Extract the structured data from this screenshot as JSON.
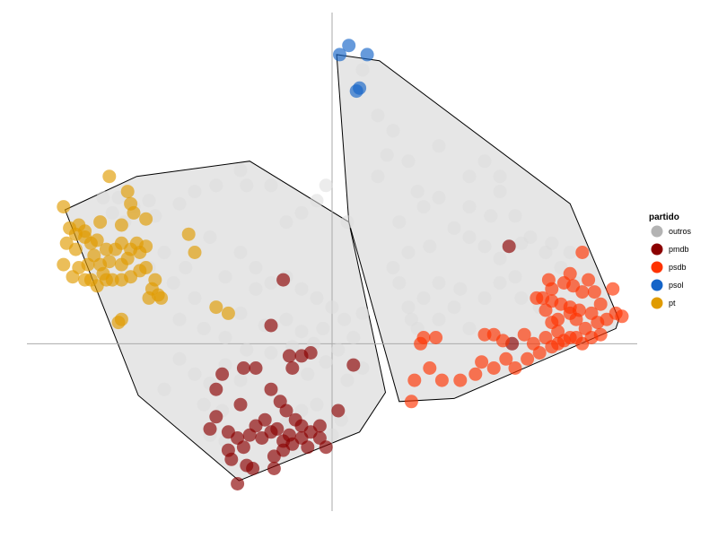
{
  "chart_data": {
    "type": "scatter",
    "title": "",
    "xlabel": "",
    "ylabel": "",
    "xlim": [
      -1.0,
      1.0
    ],
    "ylim": [
      -0.55,
      1.1
    ],
    "axes_lines": {
      "x": 0,
      "y": 0
    },
    "grid": false,
    "legend": {
      "title": "partido",
      "placement": "right",
      "entries": [
        {
          "name": "outros",
          "color": "#b3b3b3"
        },
        {
          "name": "pmdb",
          "color": "#8b0000"
        },
        {
          "name": "psdb",
          "color": "#ff3300"
        },
        {
          "name": "psol",
          "color": "#1464c8"
        },
        {
          "name": "pt",
          "color": "#e09b00"
        }
      ]
    },
    "hulls": [
      {
        "group": "pt_pmdb",
        "points": [
          [
            -0.875,
            0.44
          ],
          [
            -0.64,
            0.55
          ],
          [
            -0.27,
            0.6
          ],
          [
            0.055,
            0.4
          ],
          [
            0.175,
            -0.16
          ],
          [
            0.09,
            -0.29
          ],
          [
            -0.305,
            -0.45
          ],
          [
            -0.635,
            -0.17
          ]
        ]
      },
      {
        "group": "psol_psdb",
        "points": [
          [
            0.015,
            0.95
          ],
          [
            0.155,
            0.93
          ],
          [
            0.78,
            0.46
          ],
          [
            0.94,
            0.08
          ],
          [
            0.93,
            0.05
          ],
          [
            0.4,
            -0.18
          ],
          [
            0.22,
            -0.19
          ],
          [
            0.055,
            0.4
          ]
        ]
      }
    ],
    "series": [
      {
        "name": "outros",
        "color": "#dddddd",
        "points": [
          [
            -0.75,
            0.48
          ],
          [
            -0.72,
            0.43
          ],
          [
            -0.7,
            0.48
          ],
          [
            -0.68,
            0.4
          ],
          [
            -0.65,
            0.45
          ],
          [
            -0.6,
            0.47
          ],
          [
            -0.58,
            0.42
          ],
          [
            -0.5,
            0.46
          ],
          [
            -0.45,
            0.5
          ],
          [
            -0.38,
            0.52
          ],
          [
            -0.3,
            0.57
          ],
          [
            -0.28,
            0.52
          ],
          [
            -0.2,
            0.52
          ],
          [
            -0.15,
            0.4
          ],
          [
            -0.1,
            0.43
          ],
          [
            -0.05,
            0.47
          ],
          [
            -0.02,
            0.52
          ],
          [
            0.05,
            0.4
          ],
          [
            -0.4,
            0.35
          ],
          [
            -0.3,
            0.3
          ],
          [
            -0.25,
            0.25
          ],
          [
            -0.2,
            0.2
          ],
          [
            -0.15,
            0.22
          ],
          [
            -0.1,
            0.18
          ],
          [
            -0.05,
            0.15
          ],
          [
            0.0,
            0.12
          ],
          [
            -0.3,
            0.1
          ],
          [
            -0.22,
            0.06
          ],
          [
            -0.15,
            0.08
          ],
          [
            -0.1,
            0.04
          ],
          [
            -0.03,
            0.05
          ],
          [
            0.04,
            0.08
          ],
          [
            0.1,
            0.1
          ],
          [
            -0.45,
            0.15
          ],
          [
            -0.5,
            0.08
          ],
          [
            -0.42,
            0.05
          ],
          [
            -0.35,
            0.02
          ],
          [
            -0.28,
            -0.02
          ],
          [
            -0.2,
            -0.03
          ],
          [
            -0.13,
            -0.01
          ],
          [
            -0.06,
            0.0
          ],
          [
            0.02,
            -0.02
          ],
          [
            0.07,
            0.02
          ],
          [
            -0.5,
            -0.05
          ],
          [
            -0.45,
            -0.1
          ],
          [
            -0.4,
            -0.13
          ],
          [
            -0.35,
            -0.07
          ],
          [
            -0.3,
            -0.12
          ],
          [
            -0.08,
            -0.1
          ],
          [
            -0.02,
            -0.06
          ],
          [
            0.05,
            -0.12
          ],
          [
            0.1,
            -0.08
          ],
          [
            -0.1,
            -0.22
          ],
          [
            -0.05,
            -0.2
          ],
          [
            0.03,
            -0.25
          ],
          [
            -0.4,
            -0.3
          ],
          [
            -0.35,
            -0.32
          ],
          [
            0.1,
            0.9
          ],
          [
            0.15,
            0.75
          ],
          [
            0.2,
            0.7
          ],
          [
            0.25,
            0.6
          ],
          [
            0.35,
            0.65
          ],
          [
            0.45,
            0.55
          ],
          [
            0.5,
            0.6
          ],
          [
            0.55,
            0.5
          ],
          [
            0.6,
            0.42
          ],
          [
            0.65,
            0.35
          ],
          [
            0.7,
            0.3
          ],
          [
            0.75,
            0.25
          ],
          [
            0.8,
            0.2
          ],
          [
            0.15,
            0.55
          ],
          [
            0.22,
            0.4
          ],
          [
            0.3,
            0.45
          ],
          [
            0.4,
            0.38
          ],
          [
            0.45,
            0.35
          ],
          [
            0.5,
            0.32
          ],
          [
            0.55,
            0.28
          ],
          [
            0.6,
            0.22
          ],
          [
            0.2,
            0.25
          ],
          [
            0.25,
            0.3
          ],
          [
            0.35,
            0.2
          ],
          [
            0.42,
            0.18
          ],
          [
            0.5,
            0.15
          ],
          [
            0.55,
            0.2
          ],
          [
            0.62,
            0.15
          ],
          [
            0.68,
            0.12
          ],
          [
            0.25,
            0.12
          ],
          [
            0.3,
            0.15
          ],
          [
            0.35,
            0.08
          ],
          [
            0.45,
            0.05
          ],
          [
            0.55,
            0.02
          ],
          [
            0.28,
            0.05
          ],
          [
            0.26,
            0.08
          ],
          [
            0.4,
            0.12
          ],
          [
            0.22,
            0.2
          ],
          [
            0.32,
            0.32
          ],
          [
            0.62,
            0.33
          ],
          [
            0.52,
            0.42
          ],
          [
            0.72,
            0.33
          ],
          [
            0.78,
            0.3
          ],
          [
            0.55,
            0.55
          ],
          [
            0.45,
            0.45
          ],
          [
            0.35,
            0.48
          ],
          [
            0.18,
            0.62
          ],
          [
            0.28,
            0.5
          ],
          [
            -0.55,
            0.3
          ],
          [
            -0.6,
            0.25
          ],
          [
            -0.52,
            0.2
          ],
          [
            -0.48,
            0.25
          ],
          [
            -0.35,
            0.22
          ],
          [
            -0.25,
            0.18
          ],
          [
            -0.42,
            -0.2
          ],
          [
            -0.36,
            -0.22
          ],
          [
            -0.15,
            -0.26
          ],
          [
            -0.12,
            -0.3
          ],
          [
            0.0,
            -0.3
          ],
          [
            -0.55,
            -0.15
          ]
        ]
      },
      {
        "name": "pmdb",
        "color": "#8b0000",
        "points": [
          [
            -0.16,
            0.21
          ],
          [
            -0.2,
            0.06
          ],
          [
            -0.36,
            -0.1
          ],
          [
            -0.29,
            -0.08
          ],
          [
            -0.25,
            -0.08
          ],
          [
            -0.14,
            -0.04
          ],
          [
            -0.13,
            -0.08
          ],
          [
            -0.1,
            -0.04
          ],
          [
            -0.07,
            -0.03
          ],
          [
            0.07,
            -0.07
          ],
          [
            -0.2,
            -0.15
          ],
          [
            -0.17,
            -0.19
          ],
          [
            -0.38,
            -0.15
          ],
          [
            -0.3,
            -0.2
          ],
          [
            -0.38,
            -0.24
          ],
          [
            -0.4,
            -0.28
          ],
          [
            -0.34,
            -0.29
          ],
          [
            -0.31,
            -0.31
          ],
          [
            -0.27,
            -0.3
          ],
          [
            -0.22,
            -0.25
          ],
          [
            -0.25,
            -0.27
          ],
          [
            -0.15,
            -0.22
          ],
          [
            -0.12,
            -0.25
          ],
          [
            -0.1,
            -0.27
          ],
          [
            -0.18,
            -0.28
          ],
          [
            -0.16,
            -0.32
          ],
          [
            -0.13,
            -0.33
          ],
          [
            -0.1,
            -0.31
          ],
          [
            -0.07,
            -0.29
          ],
          [
            -0.04,
            -0.31
          ],
          [
            -0.04,
            -0.27
          ],
          [
            -0.02,
            -0.34
          ],
          [
            -0.08,
            -0.34
          ],
          [
            -0.14,
            -0.3
          ],
          [
            -0.2,
            -0.29
          ],
          [
            -0.23,
            -0.31
          ],
          [
            -0.29,
            -0.34
          ],
          [
            -0.33,
            -0.38
          ],
          [
            -0.28,
            -0.4
          ],
          [
            -0.19,
            -0.37
          ],
          [
            -0.16,
            -0.35
          ],
          [
            -0.26,
            -0.41
          ],
          [
            -0.31,
            -0.46
          ],
          [
            -0.19,
            -0.41
          ],
          [
            0.02,
            -0.22
          ],
          [
            -0.34,
            -0.35
          ],
          [
            0.58,
            0.32
          ],
          [
            0.59,
            0.0
          ]
        ]
      },
      {
        "name": "psdb",
        "color": "#ff3300",
        "points": [
          [
            0.82,
            0.3
          ],
          [
            0.92,
            0.18
          ],
          [
            0.27,
            -0.12
          ],
          [
            0.26,
            -0.19
          ],
          [
            0.29,
            0.0
          ],
          [
            0.3,
            0.02
          ],
          [
            0.34,
            0.02
          ],
          [
            0.32,
            -0.08
          ],
          [
            0.36,
            -0.12
          ],
          [
            0.42,
            -0.12
          ],
          [
            0.47,
            -0.1
          ],
          [
            0.5,
            0.03
          ],
          [
            0.53,
            0.03
          ],
          [
            0.49,
            -0.06
          ],
          [
            0.53,
            -0.08
          ],
          [
            0.57,
            -0.05
          ],
          [
            0.56,
            0.01
          ],
          [
            0.63,
            0.03
          ],
          [
            0.64,
            -0.05
          ],
          [
            0.68,
            -0.03
          ],
          [
            0.7,
            0.02
          ],
          [
            0.72,
            -0.01
          ],
          [
            0.74,
            0.0
          ],
          [
            0.76,
            0.01
          ],
          [
            0.78,
            0.02
          ],
          [
            0.8,
            0.02
          ],
          [
            0.82,
            0.0
          ],
          [
            0.85,
            0.02
          ],
          [
            0.88,
            0.03
          ],
          [
            0.83,
            0.05
          ],
          [
            0.8,
            0.08
          ],
          [
            0.78,
            0.1
          ],
          [
            0.74,
            0.08
          ],
          [
            0.72,
            0.07
          ],
          [
            0.7,
            0.11
          ],
          [
            0.69,
            0.15
          ],
          [
            0.72,
            0.14
          ],
          [
            0.75,
            0.13
          ],
          [
            0.78,
            0.12
          ],
          [
            0.81,
            0.11
          ],
          [
            0.85,
            0.1
          ],
          [
            0.87,
            0.07
          ],
          [
            0.9,
            0.08
          ],
          [
            0.93,
            0.1
          ],
          [
            0.95,
            0.09
          ],
          [
            0.88,
            0.13
          ],
          [
            0.86,
            0.17
          ],
          [
            0.82,
            0.17
          ],
          [
            0.79,
            0.19
          ],
          [
            0.76,
            0.2
          ],
          [
            0.72,
            0.18
          ],
          [
            0.67,
            0.15
          ],
          [
            0.71,
            0.21
          ],
          [
            0.78,
            0.23
          ],
          [
            0.84,
            0.21
          ],
          [
            0.6,
            -0.08
          ],
          [
            0.66,
            0.0
          ],
          [
            0.74,
            0.04
          ]
        ]
      },
      {
        "name": "psol",
        "color": "#1464c8",
        "points": [
          [
            0.025,
            0.95
          ],
          [
            0.055,
            0.98
          ],
          [
            0.115,
            0.95
          ],
          [
            0.08,
            0.83
          ],
          [
            0.09,
            0.84
          ]
        ]
      },
      {
        "name": "pt",
        "color": "#e09b00",
        "points": [
          [
            -0.73,
            0.55
          ],
          [
            -0.88,
            0.45
          ],
          [
            -0.67,
            0.5
          ],
          [
            -0.66,
            0.46
          ],
          [
            -0.83,
            0.39
          ],
          [
            -0.81,
            0.37
          ],
          [
            -0.86,
            0.38
          ],
          [
            -0.84,
            0.36
          ],
          [
            -0.81,
            0.35
          ],
          [
            -0.76,
            0.4
          ],
          [
            -0.69,
            0.39
          ],
          [
            -0.65,
            0.43
          ],
          [
            -0.61,
            0.41
          ],
          [
            -0.77,
            0.34
          ],
          [
            -0.79,
            0.33
          ],
          [
            -0.87,
            0.33
          ],
          [
            -0.84,
            0.31
          ],
          [
            -0.78,
            0.29
          ],
          [
            -0.74,
            0.31
          ],
          [
            -0.71,
            0.31
          ],
          [
            -0.69,
            0.33
          ],
          [
            -0.66,
            0.31
          ],
          [
            -0.64,
            0.33
          ],
          [
            -0.61,
            0.32
          ],
          [
            -0.63,
            0.3
          ],
          [
            -0.67,
            0.28
          ],
          [
            -0.69,
            0.26
          ],
          [
            -0.73,
            0.27
          ],
          [
            -0.76,
            0.26
          ],
          [
            -0.8,
            0.26
          ],
          [
            -0.83,
            0.25
          ],
          [
            -0.88,
            0.26
          ],
          [
            -0.85,
            0.22
          ],
          [
            -0.81,
            0.21
          ],
          [
            -0.79,
            0.21
          ],
          [
            -0.75,
            0.23
          ],
          [
            -0.72,
            0.21
          ],
          [
            -0.69,
            0.21
          ],
          [
            -0.66,
            0.22
          ],
          [
            -0.63,
            0.24
          ],
          [
            -0.61,
            0.25
          ],
          [
            -0.58,
            0.21
          ],
          [
            -0.59,
            0.18
          ],
          [
            -0.57,
            0.16
          ],
          [
            -0.6,
            0.15
          ],
          [
            -0.56,
            0.15
          ],
          [
            -0.74,
            0.21
          ],
          [
            -0.77,
            0.19
          ],
          [
            -0.7,
            0.07
          ],
          [
            -0.69,
            0.08
          ],
          [
            -0.47,
            0.36
          ],
          [
            -0.45,
            0.3
          ],
          [
            -0.38,
            0.12
          ],
          [
            -0.34,
            0.1
          ]
        ]
      }
    ]
  }
}
